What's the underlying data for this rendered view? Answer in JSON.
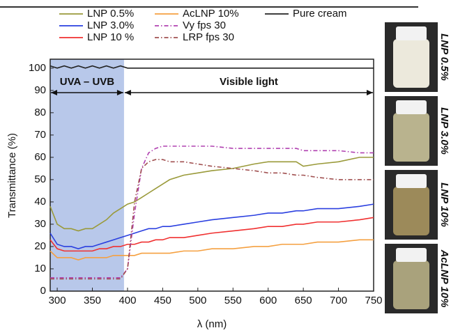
{
  "chart_data": {
    "type": "line",
    "x_label": "λ (nm)",
    "y_label": "Transmittance (%)",
    "xlim": [
      290,
      750
    ],
    "xticks": [
      300,
      350,
      400,
      450,
      500,
      550,
      600,
      650,
      700,
      750
    ],
    "ylim": [
      0,
      104
    ],
    "yticks": [
      0,
      10,
      20,
      30,
      40,
      50,
      60,
      70,
      80,
      90,
      100
    ],
    "annotations": [
      {
        "text": "UVA – UVB",
        "range": [
          290,
          395
        ]
      },
      {
        "text": "Visible light",
        "range": [
          395,
          750
        ]
      }
    ],
    "shaded_color": "#b8c8ea",
    "x": [
      290,
      300,
      310,
      320,
      330,
      340,
      350,
      360,
      370,
      380,
      390,
      400,
      410,
      420,
      430,
      440,
      450,
      460,
      480,
      500,
      520,
      550,
      580,
      600,
      620,
      640,
      650,
      670,
      700,
      730,
      750
    ],
    "series": [
      {
        "name": "LNP 0.5%",
        "color": "#9a9a3a",
        "dash": "solid",
        "values": [
          38,
          30,
          28,
          28,
          27,
          28,
          28,
          30,
          32,
          35,
          37,
          39,
          40,
          42,
          44,
          46,
          48,
          50,
          52,
          53,
          54,
          55,
          57,
          58,
          58,
          58,
          56,
          57,
          58,
          60,
          60
        ]
      },
      {
        "name": "LNP 3.0%",
        "color": "#2a3fe0",
        "dash": "solid",
        "values": [
          26,
          21,
          20,
          20,
          19,
          20,
          20,
          21,
          22,
          23,
          24,
          25,
          26,
          27,
          28,
          28,
          29,
          29,
          30,
          31,
          32,
          33,
          34,
          35,
          35,
          36,
          36,
          37,
          37,
          38,
          39
        ]
      },
      {
        "name": "LNP 10 %",
        "color": "#f03030",
        "dash": "solid",
        "values": [
          23,
          19,
          18,
          18,
          18,
          18,
          18,
          19,
          19,
          20,
          20,
          21,
          21,
          22,
          22,
          23,
          23,
          24,
          24,
          25,
          26,
          27,
          28,
          29,
          29,
          30,
          30,
          31,
          31,
          32,
          33
        ]
      },
      {
        "name": "AcLNP 10%",
        "color": "#f5a040",
        "dash": "solid",
        "values": [
          18,
          15,
          15,
          15,
          14,
          15,
          15,
          15,
          15,
          16,
          16,
          16,
          16,
          17,
          17,
          17,
          17,
          17,
          18,
          18,
          19,
          19,
          20,
          20,
          21,
          21,
          21,
          22,
          22,
          23,
          23
        ]
      },
      {
        "name": "Vy fps 30",
        "color": "#b040b0",
        "dash": "dashdot",
        "values": [
          6,
          6,
          6,
          6,
          6,
          6,
          6,
          6,
          6,
          6,
          6,
          10,
          35,
          55,
          62,
          64,
          65,
          65,
          65,
          65,
          65,
          64,
          64,
          64,
          64,
          64,
          63,
          63,
          63,
          62,
          62
        ]
      },
      {
        "name": "LRP fps 30",
        "color": "#a05050",
        "dash": "dashdot",
        "values": [
          5.5,
          5.5,
          5.5,
          5.5,
          5.5,
          5.5,
          5.5,
          5.5,
          5.5,
          5.5,
          5.5,
          10,
          40,
          55,
          58,
          59,
          59,
          58,
          58,
          57,
          56,
          55,
          54,
          53,
          53,
          52,
          52,
          51,
          50,
          50,
          50
        ]
      },
      {
        "name": "Pure cream",
        "color": "#222222",
        "dash": "solid",
        "values": [
          101,
          100,
          101,
          100,
          101,
          100,
          101,
          100,
          101,
          100,
          101,
          100,
          100,
          100,
          100,
          100,
          100,
          100,
          100,
          100,
          100,
          100,
          100,
          100,
          100,
          100,
          100,
          100,
          100,
          100,
          100
        ]
      }
    ]
  },
  "photos": [
    {
      "label": "LNP 0.5%",
      "color": "#9a9a3a",
      "body": "#ece9dc"
    },
    {
      "label": "LNP 3.0%",
      "color": "#4a5aa0",
      "body": "#b9b38e"
    },
    {
      "label": "LNP 10%",
      "color": "#f03030",
      "body": "#9c8a5a"
    },
    {
      "label": "AcLNP 10%",
      "color": "#f5a040",
      "body": "#a9a27c"
    }
  ]
}
